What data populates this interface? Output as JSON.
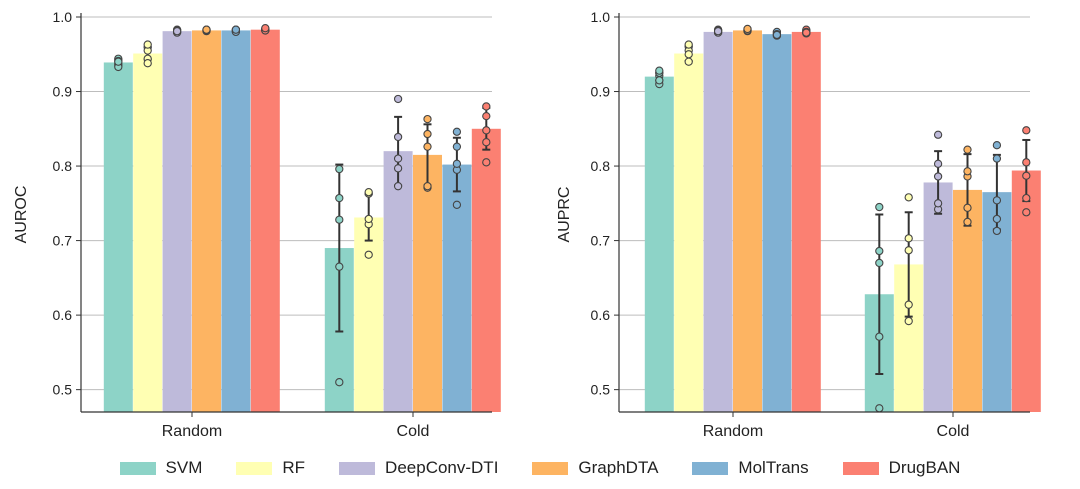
{
  "colors": {
    "SVM": "#8dd3c7",
    "RF": "#ffffb3",
    "DeepConv-DTI": "#bebada",
    "GraphDTA": "#fdb462",
    "MolTrans": "#80b1d3",
    "DrugBAN": "#fb8072"
  },
  "legend": {
    "items": [
      {
        "label": "SVM",
        "color": "#8dd3c7"
      },
      {
        "label": "RF",
        "color": "#ffffb3"
      },
      {
        "label": "DeepConv-DTI",
        "color": "#bebada"
      },
      {
        "label": "GraphDTA",
        "color": "#fdb462"
      },
      {
        "label": "MolTrans",
        "color": "#80b1d3"
      },
      {
        "label": "DrugBAN",
        "color": "#fb8072"
      }
    ]
  },
  "chart_data": [
    {
      "type": "bar",
      "title": "",
      "xlabel": "",
      "ylabel": "AUROC",
      "ylim": [
        0.47,
        1.0
      ],
      "yticks": [
        "0.5",
        "0.6",
        "0.7",
        "0.8",
        "0.9",
        "1.0"
      ],
      "grid": true,
      "categories": [
        "Random",
        "Cold"
      ],
      "series": [
        {
          "name": "SVM",
          "values": [
            0.939,
            0.69
          ],
          "errors": [
            0.004,
            0.112
          ],
          "points": [
            [
              0.944,
              0.937,
              0.933,
              0.941,
              0.94
            ],
            [
              0.51,
              0.665,
              0.728,
              0.757,
              0.796
            ]
          ]
        },
        {
          "name": "RF",
          "values": [
            0.951,
            0.731
          ],
          "errors": [
            0.008,
            0.031
          ],
          "points": [
            [
              0.96,
              0.955,
              0.944,
              0.938,
              0.963
            ],
            [
              0.681,
              0.722,
              0.729,
              0.763,
              0.765
            ]
          ]
        },
        {
          "name": "DeepConv-DTI",
          "values": [
            0.981,
            0.82
          ],
          "errors": [
            0.002,
            0.046
          ],
          "points": [
            [
              0.983,
              0.98,
              0.979,
              0.982,
              0.981
            ],
            [
              0.773,
              0.797,
              0.81,
              0.839,
              0.89
            ]
          ]
        },
        {
          "name": "GraphDTA",
          "values": [
            0.982,
            0.815
          ],
          "errors": [
            0.001,
            0.041
          ],
          "points": [
            [
              0.983,
              0.982,
              0.981,
              0.982,
              0.983
            ],
            [
              0.771,
              0.773,
              0.826,
              0.843,
              0.863
            ]
          ]
        },
        {
          "name": "MolTrans",
          "values": [
            0.982,
            0.802
          ],
          "errors": [
            0.002,
            0.036
          ],
          "points": [
            [
              0.983,
              0.982,
              0.981,
              0.98,
              0.983
            ],
            [
              0.748,
              0.795,
              0.803,
              0.826,
              0.846
            ]
          ]
        },
        {
          "name": "DrugBAN",
          "values": [
            0.983,
            0.85
          ],
          "errors": [
            0.001,
            0.028
          ],
          "points": [
            [
              0.984,
              0.983,
              0.982,
              0.982,
              0.985
            ],
            [
              0.805,
              0.832,
              0.848,
              0.867,
              0.88
            ]
          ]
        }
      ]
    },
    {
      "type": "bar",
      "title": "",
      "xlabel": "",
      "ylabel": "AUPRC",
      "ylim": [
        0.47,
        1.0
      ],
      "yticks": [
        "0.5",
        "0.6",
        "0.7",
        "0.8",
        "0.9",
        "1.0"
      ],
      "grid": true,
      "categories": [
        "Random",
        "Cold"
      ],
      "series": [
        {
          "name": "SVM",
          "values": [
            0.92,
            0.628
          ],
          "errors": [
            0.005,
            0.107
          ],
          "points": [
            [
              0.91,
              0.921,
              0.925,
              0.928,
              0.915
            ],
            [
              0.475,
              0.571,
              0.67,
              0.686,
              0.745
            ]
          ]
        },
        {
          "name": "RF",
          "values": [
            0.951,
            0.668
          ],
          "errors": [
            0.01,
            0.07
          ],
          "points": [
            [
              0.96,
              0.955,
              0.95,
              0.94,
              0.963
            ],
            [
              0.592,
              0.614,
              0.687,
              0.703,
              0.758
            ]
          ]
        },
        {
          "name": "DeepConv-DTI",
          "values": [
            0.98,
            0.778
          ],
          "errors": [
            0.002,
            0.042
          ],
          "points": [
            [
              0.983,
              0.98,
              0.979,
              0.982,
              0.981
            ],
            [
              0.742,
              0.75,
              0.786,
              0.803,
              0.842
            ]
          ]
        },
        {
          "name": "GraphDTA",
          "values": [
            0.982,
            0.768
          ],
          "errors": [
            0.001,
            0.048
          ],
          "points": [
            [
              0.983,
              0.982,
              0.981,
              0.982,
              0.984
            ],
            [
              0.725,
              0.744,
              0.786,
              0.793,
              0.822
            ]
          ]
        },
        {
          "name": "MolTrans",
          "values": [
            0.977,
            0.765
          ],
          "errors": [
            0.003,
            0.05
          ],
          "points": [
            [
              0.975,
              0.978,
              0.98,
              0.977,
              0.976
            ],
            [
              0.713,
              0.729,
              0.754,
              0.81,
              0.828
            ]
          ]
        },
        {
          "name": "DrugBAN",
          "values": [
            0.98,
            0.794
          ],
          "errors": [
            0.002,
            0.041
          ],
          "points": [
            [
              0.978,
              0.981,
              0.983,
              0.98,
              0.979
            ],
            [
              0.738,
              0.757,
              0.787,
              0.805,
              0.848
            ]
          ]
        }
      ]
    }
  ]
}
